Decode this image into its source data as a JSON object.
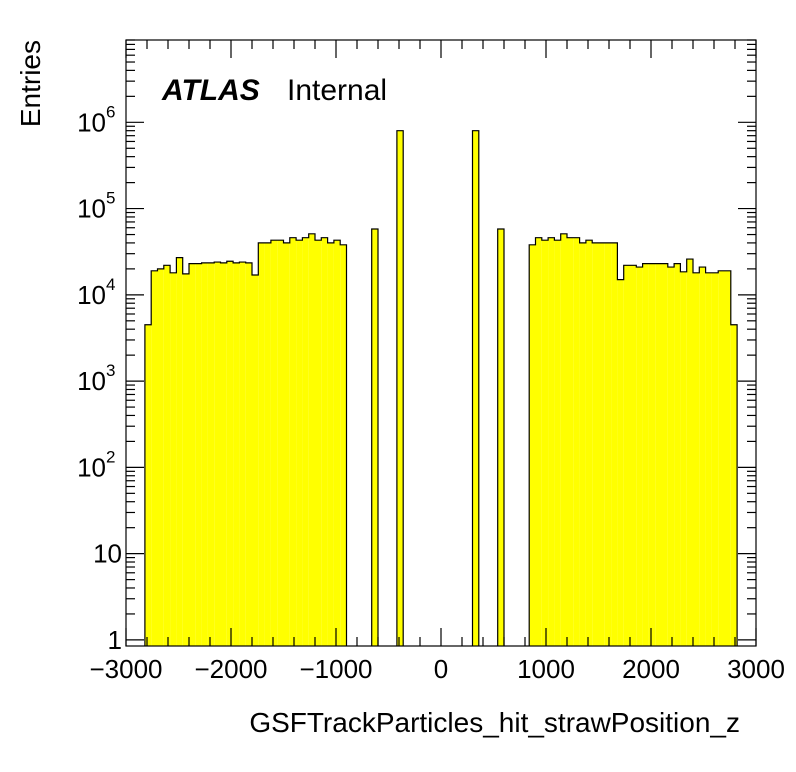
{
  "chart_data": {
    "type": "bar",
    "style": "histogram",
    "fill_color": "#ffff00",
    "edge_color": "#000000",
    "xlabel": "GSFTrackParticles_hit_strawPosition_z",
    "ylabel": "Entries",
    "xlim": [
      -3000,
      3000
    ],
    "ylim": [
      0.85,
      9000000
    ],
    "yscale": "log",
    "label": {
      "experiment": "ATLAS",
      "status": "Internal"
    },
    "x_ticks": [
      {
        "value": -3000,
        "label": "−3000"
      },
      {
        "value": -2000,
        "label": "−2000"
      },
      {
        "value": -1000,
        "label": "−1000"
      },
      {
        "value": 0,
        "label": "0"
      },
      {
        "value": 1000,
        "label": "1000"
      },
      {
        "value": 2000,
        "label": "2000"
      },
      {
        "value": 3000,
        "label": "3000"
      }
    ],
    "y_ticks": [
      {
        "value": 1,
        "base": "1",
        "exp": ""
      },
      {
        "value": 10,
        "base": "10",
        "exp": ""
      },
      {
        "value": 100,
        "base": "10",
        "exp": "2"
      },
      {
        "value": 1000,
        "base": "10",
        "exp": "3"
      },
      {
        "value": 10000,
        "base": "10",
        "exp": "4"
      },
      {
        "value": 100000,
        "base": "10",
        "exp": "5"
      },
      {
        "value": 1000000,
        "base": "10",
        "exp": "6"
      }
    ],
    "bin_width": 60,
    "bins": [
      {
        "x_low": -2820,
        "value": 4500
      },
      {
        "x_low": -2760,
        "value": 19000
      },
      {
        "x_low": -2700,
        "value": 20000
      },
      {
        "x_low": -2640,
        "value": 22000
      },
      {
        "x_low": -2580,
        "value": 18000
      },
      {
        "x_low": -2520,
        "value": 27000
      },
      {
        "x_low": -2460,
        "value": 17500
      },
      {
        "x_low": -2400,
        "value": 23000
      },
      {
        "x_low": -2340,
        "value": 23000
      },
      {
        "x_low": -2280,
        "value": 23500
      },
      {
        "x_low": -2220,
        "value": 23500
      },
      {
        "x_low": -2160,
        "value": 24000
      },
      {
        "x_low": -2100,
        "value": 23500
      },
      {
        "x_low": -2040,
        "value": 24500
      },
      {
        "x_low": -1980,
        "value": 23500
      },
      {
        "x_low": -1920,
        "value": 24000
      },
      {
        "x_low": -1860,
        "value": 23500
      },
      {
        "x_low": -1800,
        "value": 17000
      },
      {
        "x_low": -1740,
        "value": 40000
      },
      {
        "x_low": -1680,
        "value": 40000
      },
      {
        "x_low": -1620,
        "value": 43000
      },
      {
        "x_low": -1560,
        "value": 43000
      },
      {
        "x_low": -1500,
        "value": 40000
      },
      {
        "x_low": -1440,
        "value": 46000
      },
      {
        "x_low": -1380,
        "value": 43000
      },
      {
        "x_low": -1320,
        "value": 46000
      },
      {
        "x_low": -1260,
        "value": 51000
      },
      {
        "x_low": -1200,
        "value": 43000
      },
      {
        "x_low": -1140,
        "value": 46000
      },
      {
        "x_low": -1080,
        "value": 40000
      },
      {
        "x_low": -1020,
        "value": 43000
      },
      {
        "x_low": -960,
        "value": 38000
      },
      {
        "x_low": -660,
        "value": 58000
      },
      {
        "x_low": -420,
        "value": 800000
      },
      {
        "x_low": 300,
        "value": 800000
      },
      {
        "x_low": 540,
        "value": 58000
      },
      {
        "x_low": 840,
        "value": 38000
      },
      {
        "x_low": 900,
        "value": 46000
      },
      {
        "x_low": 960,
        "value": 43000
      },
      {
        "x_low": 1020,
        "value": 46000
      },
      {
        "x_low": 1080,
        "value": 43000
      },
      {
        "x_low": 1140,
        "value": 51000
      },
      {
        "x_low": 1200,
        "value": 46000
      },
      {
        "x_low": 1260,
        "value": 46000
      },
      {
        "x_low": 1320,
        "value": 40000
      },
      {
        "x_low": 1380,
        "value": 43000
      },
      {
        "x_low": 1440,
        "value": 40000
      },
      {
        "x_low": 1500,
        "value": 40000
      },
      {
        "x_low": 1560,
        "value": 40000
      },
      {
        "x_low": 1620,
        "value": 40000
      },
      {
        "x_low": 1680,
        "value": 15000
      },
      {
        "x_low": 1740,
        "value": 22000
      },
      {
        "x_low": 1800,
        "value": 22000
      },
      {
        "x_low": 1860,
        "value": 21000
      },
      {
        "x_low": 1920,
        "value": 23000
      },
      {
        "x_low": 1980,
        "value": 23000
      },
      {
        "x_low": 2040,
        "value": 23000
      },
      {
        "x_low": 2100,
        "value": 23000
      },
      {
        "x_low": 2160,
        "value": 21000
      },
      {
        "x_low": 2220,
        "value": 23000
      },
      {
        "x_low": 2280,
        "value": 18500
      },
      {
        "x_low": 2340,
        "value": 26000
      },
      {
        "x_low": 2400,
        "value": 18000
      },
      {
        "x_low": 2460,
        "value": 21000
      },
      {
        "x_low": 2520,
        "value": 18000
      },
      {
        "x_low": 2580,
        "value": 18000
      },
      {
        "x_low": 2640,
        "value": 19000
      },
      {
        "x_low": 2700,
        "value": 19000
      },
      {
        "x_low": 2760,
        "value": 4500
      }
    ]
  }
}
